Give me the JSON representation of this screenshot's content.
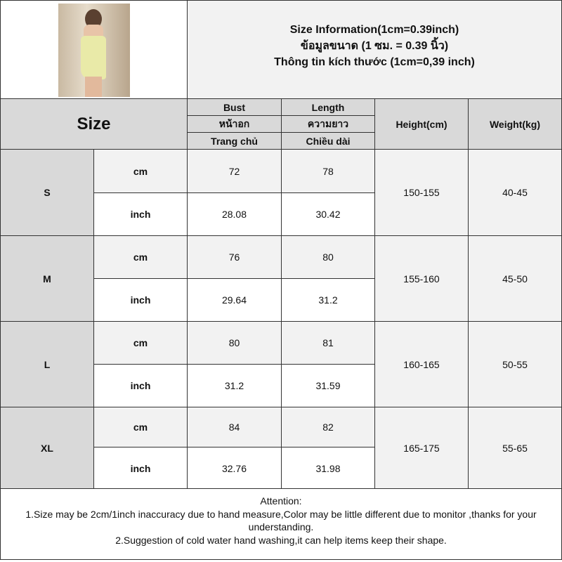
{
  "title": {
    "line1": "Size Information(1cm=0.39inch)",
    "line2": "ข้อมูลขนาด (1 ซม. = 0.39 นิ้ว)",
    "line3": "Thông tin kích thước (1cm=0,39 inch)"
  },
  "header": {
    "size": "Size",
    "bust": [
      "Bust",
      "หน้าอก",
      "Trang chủ"
    ],
    "length": [
      "Length",
      "ความยาว",
      "Chiều dài"
    ],
    "height": "Height(cm)",
    "weight": "Weight(kg)"
  },
  "rows": [
    {
      "size": "S",
      "cm_label": "cm",
      "inch_label": "inch",
      "bust_cm": "72",
      "length_cm": "78",
      "bust_inch": "28.08",
      "length_inch": "30.42",
      "height": "150-155",
      "weight": "40-45"
    },
    {
      "size": "M",
      "cm_label": "cm",
      "inch_label": "inch",
      "bust_cm": "76",
      "length_cm": "80",
      "bust_inch": "29.64",
      "length_inch": "31.2",
      "height": "155-160",
      "weight": "45-50"
    },
    {
      "size": "L",
      "cm_label": "cm",
      "inch_label": "inch",
      "bust_cm": "80",
      "length_cm": "81",
      "bust_inch": "31.2",
      "length_inch": "31.59",
      "height": "160-165",
      "weight": "50-55"
    },
    {
      "size": "XL",
      "cm_label": "cm",
      "inch_label": "inch",
      "bust_cm": "84",
      "length_cm": "82",
      "bust_inch": "32.76",
      "length_inch": "31.98",
      "height": "165-175",
      "weight": "55-65"
    }
  ],
  "footer": {
    "heading": "Attention:",
    "note1": "1.Size may be 2cm/1inch inaccuracy due to hand measure,Color may be little different due to monitor ,thanks for your understanding.",
    "note2": "2.Suggestion of cold water hand washing,it can help items keep their shape."
  }
}
